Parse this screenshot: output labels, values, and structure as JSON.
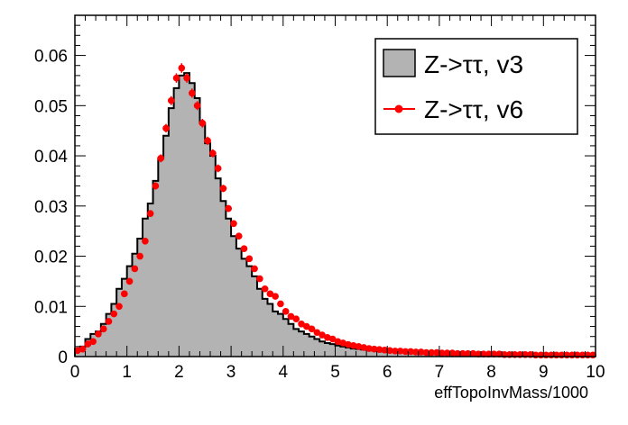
{
  "chart_data": {
    "type": "histogram",
    "xlabel": "effTopoInvMass/1000",
    "ylabel": "",
    "xlim": [
      0,
      10
    ],
    "ylim": [
      0,
      0.068
    ],
    "x_ticks": [
      0,
      1,
      2,
      3,
      4,
      5,
      6,
      7,
      8,
      9,
      10
    ],
    "y_ticks": [
      0,
      0.01,
      0.02,
      0.03,
      0.04,
      0.05,
      0.06
    ],
    "y_tick_labels": [
      "0",
      "0.01",
      "0.02",
      "0.03",
      "0.04",
      "0.05",
      "0.06"
    ],
    "bin_width": 0.1,
    "legend_position": "top-right",
    "series": [
      {
        "name": "Z->ττ, v3",
        "style": "filled-histogram",
        "color": "#b3b3b3",
        "edge_color": "#000000",
        "values": [
          0.0015,
          0.002,
          0.0035,
          0.0045,
          0.005,
          0.0065,
          0.0085,
          0.0105,
          0.0135,
          0.0155,
          0.018,
          0.0205,
          0.0235,
          0.0275,
          0.0305,
          0.035,
          0.0395,
          0.044,
          0.0495,
          0.0535,
          0.056,
          0.0565,
          0.0545,
          0.0515,
          0.0465,
          0.0425,
          0.04,
          0.0355,
          0.031,
          0.0275,
          0.024,
          0.0215,
          0.0195,
          0.018,
          0.016,
          0.0135,
          0.0115,
          0.0105,
          0.009,
          0.0085,
          0.0075,
          0.0065,
          0.0055,
          0.005,
          0.0045,
          0.004,
          0.0035,
          0.003,
          0.0027,
          0.0025,
          0.0022,
          0.002,
          0.0018,
          0.0016,
          0.0015,
          0.0014,
          0.0013,
          0.0012,
          0.0011,
          0.001,
          0.0009,
          0.0009,
          0.0008,
          0.0008,
          0.0007,
          0.0007,
          0.0006,
          0.0006,
          0.0006,
          0.0005,
          0.0005,
          0.0005,
          0.0004,
          0.0004,
          0.0004,
          0.0004,
          0.0003,
          0.0003,
          0.0003,
          0.0003,
          0.0003,
          0.0003,
          0.0002,
          0.0002,
          0.0002,
          0.0002,
          0.0002,
          0.0002,
          0.0002,
          0.0002,
          0.0002,
          0.0002,
          0.0001,
          0.0001,
          0.0001,
          0.0001,
          0.0001,
          0.0001,
          0.0001,
          0.0001
        ]
      },
      {
        "name": "Z->ττ, v6",
        "style": "markers-with-errors",
        "color": "#ff0000",
        "values": [
          0.0012,
          0.0015,
          0.0025,
          0.003,
          0.0045,
          0.0055,
          0.007,
          0.0085,
          0.01,
          0.0125,
          0.015,
          0.0175,
          0.02,
          0.023,
          0.0285,
          0.034,
          0.0395,
          0.0455,
          0.051,
          0.0555,
          0.0575,
          0.0555,
          0.0525,
          0.05,
          0.0465,
          0.043,
          0.0405,
          0.0375,
          0.0335,
          0.0295,
          0.0265,
          0.024,
          0.0215,
          0.0195,
          0.0175,
          0.0155,
          0.0135,
          0.0125,
          0.012,
          0.0105,
          0.009,
          0.008,
          0.0075,
          0.0065,
          0.006,
          0.0055,
          0.0048,
          0.0043,
          0.0038,
          0.0035,
          0.003,
          0.0027,
          0.0024,
          0.0022,
          0.002,
          0.0018,
          0.0016,
          0.0015,
          0.0014,
          0.0013,
          0.0012,
          0.0011,
          0.0011,
          0.001,
          0.001,
          0.0009,
          0.0009,
          0.0008,
          0.0008,
          0.0008,
          0.0007,
          0.0007,
          0.0007,
          0.0006,
          0.0006,
          0.0006,
          0.0006,
          0.0005,
          0.0005,
          0.0005,
          0.0005,
          0.0005,
          0.0004,
          0.0004,
          0.0004,
          0.0004,
          0.0004,
          0.0004,
          0.0003,
          0.0003,
          0.0003,
          0.0003,
          0.0003,
          0.0003,
          0.0003,
          0.0003,
          0.0003,
          0.0003,
          0.0003,
          0.0003
        ]
      }
    ]
  }
}
